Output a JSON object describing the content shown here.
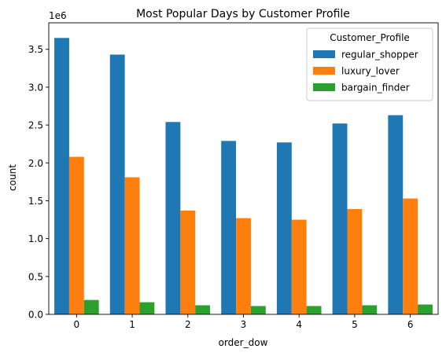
{
  "chart_data": {
    "type": "bar",
    "title": "Most Popular Days by Customer Profile",
    "xlabel": "order_dow",
    "ylabel": "count",
    "y_offset_text": "1e6",
    "categories": [
      "0",
      "1",
      "2",
      "3",
      "4",
      "5",
      "6"
    ],
    "ylim": [
      0,
      3.85
    ],
    "y_ticks": [
      0.0,
      0.5,
      1.0,
      1.5,
      2.0,
      2.5,
      3.0,
      3.5
    ],
    "y_tick_labels": [
      "0.0",
      "0.5",
      "1.0",
      "1.5",
      "2.0",
      "2.5",
      "3.0",
      "3.5"
    ],
    "grid": false,
    "legend": {
      "title": "Customer_Profile",
      "placement": "top-right"
    },
    "series": [
      {
        "name": "regular_shopper",
        "color": "#1f77b4",
        "values": [
          3.65,
          3.43,
          2.54,
          2.29,
          2.27,
          2.52,
          2.63
        ]
      },
      {
        "name": "luxury_lover",
        "color": "#ff7f0e",
        "values": [
          2.08,
          1.81,
          1.37,
          1.27,
          1.25,
          1.39,
          1.53
        ]
      },
      {
        "name": "bargain_finder",
        "color": "#2ca02c",
        "values": [
          0.19,
          0.16,
          0.12,
          0.11,
          0.11,
          0.12,
          0.13
        ]
      }
    ]
  }
}
